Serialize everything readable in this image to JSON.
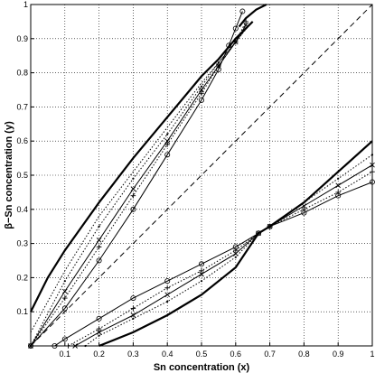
{
  "chart_data": {
    "type": "line",
    "xlabel": "Sn concentration (x)",
    "ylabel": "β−Sn concentration (y)",
    "xlim": [
      0,
      1
    ],
    "ylim": [
      0,
      1
    ],
    "xticks": [
      0.1,
      0.2,
      0.3,
      0.4,
      0.5,
      0.6,
      0.7,
      0.8,
      0.9,
      1
    ],
    "yticks": [
      0.1,
      0.2,
      0.3,
      0.4,
      0.5,
      0.6,
      0.7,
      0.8,
      0.9,
      1
    ],
    "grid": "dotted",
    "series": [
      {
        "style": "solid",
        "marker": "none",
        "x": [
          0,
          0.05,
          0.1,
          0.2,
          0.3,
          0.4,
          0.5,
          0.55,
          0.6,
          0.65
        ],
        "y": [
          0.1,
          0.2,
          0.28,
          0.42,
          0.55,
          0.67,
          0.79,
          0.84,
          0.9,
          0.95
        ]
      },
      {
        "style": "solid",
        "marker": "none",
        "x": [
          0.61,
          0.63,
          0.66,
          0.69
        ],
        "y": [
          0.935,
          0.96,
          0.985,
          1.0
        ]
      },
      {
        "style": "dotted",
        "marker": "none",
        "x": [
          0,
          0.1,
          0.2,
          0.3,
          0.4,
          0.5,
          0.55,
          0.6,
          0.64
        ],
        "y": [
          0.04,
          0.22,
          0.38,
          0.51,
          0.64,
          0.77,
          0.83,
          0.89,
          0.94
        ]
      },
      {
        "style": "dotted",
        "marker": "point",
        "x": [
          0,
          0.1,
          0.2,
          0.3,
          0.4,
          0.5,
          0.55,
          0.6,
          0.63
        ],
        "y": [
          0,
          0.19,
          0.35,
          0.49,
          0.62,
          0.76,
          0.83,
          0.89,
          0.93
        ]
      },
      {
        "style": "solid",
        "marker": "x",
        "x": [
          0,
          0.1,
          0.2,
          0.3,
          0.4,
          0.5,
          0.55,
          0.6,
          0.63
        ],
        "y": [
          0,
          0.16,
          0.31,
          0.46,
          0.6,
          0.75,
          0.82,
          0.89,
          0.94
        ]
      },
      {
        "style": "dotted",
        "marker": "plus",
        "x": [
          0,
          0.1,
          0.2,
          0.3,
          0.4,
          0.5,
          0.55,
          0.6,
          0.63
        ],
        "y": [
          0,
          0.14,
          0.29,
          0.44,
          0.59,
          0.74,
          0.82,
          0.89,
          0.95
        ]
      },
      {
        "style": "solid",
        "marker": "circle",
        "x": [
          0,
          0.1,
          0.2,
          0.3,
          0.4,
          0.5,
          0.55,
          0.58,
          0.6,
          0.62
        ],
        "y": [
          0,
          0.11,
          0.25,
          0.4,
          0.56,
          0.72,
          0.81,
          0.88,
          0.93,
          0.98
        ]
      },
      {
        "style": "dashed",
        "marker": "none",
        "x": [
          0,
          1
        ],
        "y": [
          0,
          1
        ]
      },
      {
        "style": "solid",
        "marker": "none",
        "x": [
          0.2,
          0.3,
          0.4,
          0.5,
          0.6,
          0.667,
          0.7,
          0.8,
          0.9,
          1.0
        ],
        "y": [
          0,
          0.04,
          0.09,
          0.15,
          0.23,
          0.33,
          0.35,
          0.42,
          0.51,
          0.6
        ]
      },
      {
        "style": "dotted",
        "marker": "point",
        "x": [
          0.16,
          0.2,
          0.3,
          0.4,
          0.5,
          0.6,
          0.667,
          0.7,
          0.8,
          0.9,
          1.0
        ],
        "y": [
          0,
          0.03,
          0.08,
          0.13,
          0.19,
          0.26,
          0.33,
          0.35,
          0.42,
          0.49,
          0.56
        ]
      },
      {
        "style": "solid",
        "marker": "x",
        "x": [
          0.13,
          0.2,
          0.3,
          0.4,
          0.5,
          0.6,
          0.667,
          0.7,
          0.8,
          0.9,
          1.0
        ],
        "y": [
          0,
          0.04,
          0.09,
          0.15,
          0.21,
          0.27,
          0.33,
          0.35,
          0.41,
          0.47,
          0.53
        ]
      },
      {
        "style": "dotted",
        "marker": "plus",
        "x": [
          0.11,
          0.2,
          0.3,
          0.4,
          0.5,
          0.6,
          0.667,
          0.7,
          0.8,
          0.9,
          1.0
        ],
        "y": [
          0,
          0.05,
          0.11,
          0.17,
          0.22,
          0.28,
          0.33,
          0.35,
          0.4,
          0.45,
          0.51
        ]
      },
      {
        "style": "solid",
        "marker": "circle",
        "x": [
          0.07,
          0.1,
          0.2,
          0.3,
          0.4,
          0.5,
          0.6,
          0.667,
          0.7,
          0.8,
          0.9,
          1.0
        ],
        "y": [
          0,
          0.02,
          0.08,
          0.14,
          0.19,
          0.24,
          0.29,
          0.33,
          0.35,
          0.39,
          0.44,
          0.48
        ]
      }
    ]
  }
}
